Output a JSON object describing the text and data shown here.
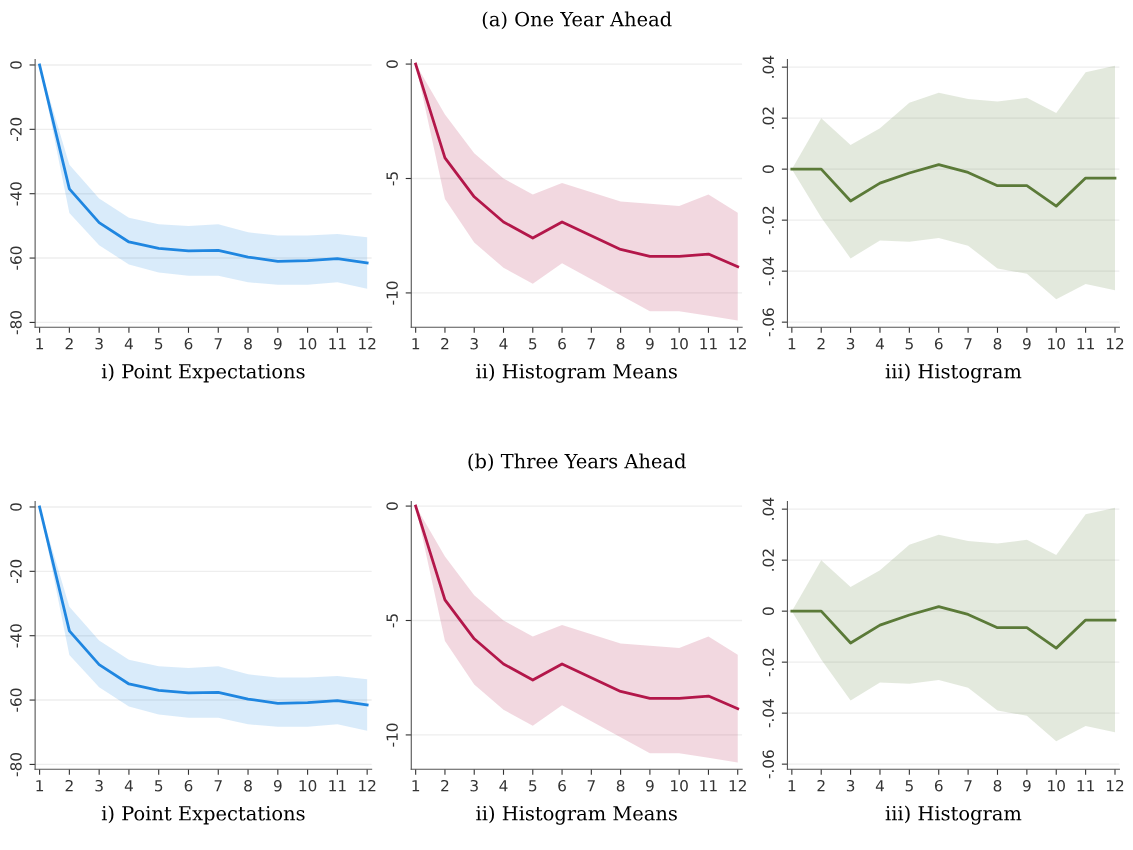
{
  "chart_data": [
    {
      "type": "line",
      "xlabel": "i) Point Expectations",
      "x": [
        1,
        2,
        3,
        4,
        5,
        6,
        7,
        8,
        9,
        10,
        11,
        12
      ],
      "xlim": [
        0.85,
        12.15
      ],
      "xticks": [
        1,
        2,
        3,
        4,
        5,
        6,
        7,
        8,
        9,
        10,
        11,
        12
      ],
      "ylim": [
        -81.5,
        1.7
      ],
      "yticks": [
        -80,
        -60,
        -40,
        -20,
        0
      ],
      "grid": "y",
      "series": [
        {
          "color": "#1f86e0",
          "values": [
            0,
            -38.5,
            -49,
            -55,
            -57,
            -57.8,
            -57.6,
            -59.7,
            -61,
            -60.8,
            -60.2,
            -61.5
          ],
          "upper": [
            0,
            -31,
            -41.5,
            -47.5,
            -49.5,
            -50,
            -49.5,
            -52,
            -53,
            -53,
            -52.5,
            -53.5
          ],
          "lower": [
            0,
            -46,
            -56,
            -62,
            -64.5,
            -65.5,
            -65.5,
            -67.5,
            -68.3,
            -68.3,
            -67.5,
            -69.5
          ]
        }
      ]
    },
    {
      "type": "line",
      "title": "(a) One Year Ahead",
      "xlabel": "ii) Histogram Means",
      "x": [
        1,
        2,
        3,
        4,
        5,
        6,
        7,
        8,
        9,
        10,
        11,
        12
      ],
      "xlim": [
        0.85,
        12.15
      ],
      "xticks": [
        1,
        2,
        3,
        4,
        5,
        6,
        7,
        8,
        9,
        10,
        11,
        12
      ],
      "ylim": [
        -11.5,
        0.2
      ],
      "yticks": [
        -10,
        -5,
        0
      ],
      "grid": "y",
      "series": [
        {
          "color": "#b3174a",
          "values": [
            0,
            -4.1,
            -5.8,
            -6.9,
            -7.6,
            -6.9,
            -7.5,
            -8.1,
            -8.4,
            -8.4,
            -8.3,
            -8.85
          ],
          "upper": [
            0,
            -2.2,
            -3.9,
            -5.0,
            -5.7,
            -5.2,
            -5.6,
            -6.0,
            -6.1,
            -6.2,
            -5.7,
            -6.5
          ],
          "lower": [
            0,
            -5.9,
            -7.8,
            -8.9,
            -9.6,
            -8.7,
            -9.4,
            -10.1,
            -10.8,
            -10.8,
            -11.0,
            -11.2
          ]
        }
      ]
    },
    {
      "type": "line",
      "xlabel": "iii) Histogram",
      "x": [
        1,
        2,
        3,
        4,
        5,
        6,
        7,
        8,
        9,
        10,
        11,
        12
      ],
      "xlim": [
        0.85,
        12.15
      ],
      "xticks": [
        1,
        2,
        3,
        4,
        5,
        6,
        7,
        8,
        9,
        10,
        11,
        12
      ],
      "ylim": [
        -0.062,
        0.043
      ],
      "yticks": [
        {
          "value": -0.06,
          "label": "-.06"
        },
        {
          "value": -0.04,
          "label": "-.04"
        },
        {
          "value": -0.02,
          "label": "-.02"
        },
        0,
        {
          "value": 0.02,
          "label": ".02"
        },
        {
          "value": 0.04,
          "label": ".04"
        }
      ],
      "grid": "y",
      "series": [
        {
          "color": "#5b7a38",
          "values": [
            0,
            0,
            -0.0125,
            -0.0055,
            -0.0015,
            0.0018,
            -0.0013,
            -0.0065,
            -0.0065,
            -0.0145,
            -0.0035,
            -0.0035
          ],
          "upper": [
            0,
            0.02,
            0.0095,
            0.016,
            0.026,
            0.03,
            0.0275,
            0.0265,
            0.028,
            0.022,
            0.038,
            0.0405
          ],
          "lower": [
            0,
            -0.019,
            -0.035,
            -0.028,
            -0.0285,
            -0.027,
            -0.03,
            -0.039,
            -0.041,
            -0.051,
            -0.045,
            -0.0475
          ]
        }
      ]
    },
    {
      "type": "line",
      "xlabel": "i) Point Expectations",
      "x": [
        1,
        2,
        3,
        4,
        5,
        6,
        7,
        8,
        9,
        10,
        11,
        12
      ],
      "xlim": [
        0.85,
        12.15
      ],
      "xticks": [
        1,
        2,
        3,
        4,
        5,
        6,
        7,
        8,
        9,
        10,
        11,
        12
      ],
      "ylim": [
        -81.5,
        1.7
      ],
      "yticks": [
        -80,
        -60,
        -40,
        -20,
        0
      ],
      "grid": "y",
      "series": [
        {
          "color": "#1f86e0",
          "values": [
            0,
            -38.5,
            -49,
            -55,
            -57,
            -57.8,
            -57.6,
            -59.7,
            -61,
            -60.8,
            -60.2,
            -61.5
          ],
          "upper": [
            0,
            -31,
            -41.5,
            -47.5,
            -49.5,
            -50,
            -49.5,
            -52,
            -53,
            -53,
            -52.5,
            -53.5
          ],
          "lower": [
            0,
            -46,
            -56,
            -62,
            -64.5,
            -65.5,
            -65.5,
            -67.5,
            -68.3,
            -68.3,
            -67.5,
            -69.5
          ]
        }
      ]
    },
    {
      "type": "line",
      "title": "(b) Three Years Ahead",
      "xlabel": "ii) Histogram Means",
      "x": [
        1,
        2,
        3,
        4,
        5,
        6,
        7,
        8,
        9,
        10,
        11,
        12
      ],
      "xlim": [
        0.85,
        12.15
      ],
      "xticks": [
        1,
        2,
        3,
        4,
        5,
        6,
        7,
        8,
        9,
        10,
        11,
        12
      ],
      "ylim": [
        -11.5,
        0.2
      ],
      "yticks": [
        -10,
        -5,
        0
      ],
      "grid": "y",
      "series": [
        {
          "color": "#b3174a",
          "values": [
            0,
            -4.1,
            -5.8,
            -6.9,
            -7.6,
            -6.9,
            -7.5,
            -8.1,
            -8.4,
            -8.4,
            -8.3,
            -8.85
          ],
          "upper": [
            0,
            -2.2,
            -3.9,
            -5.0,
            -5.7,
            -5.2,
            -5.6,
            -6.0,
            -6.1,
            -6.2,
            -5.7,
            -6.5
          ],
          "lower": [
            0,
            -5.9,
            -7.8,
            -8.9,
            -9.6,
            -8.7,
            -9.4,
            -10.1,
            -10.8,
            -10.8,
            -11.0,
            -11.2
          ]
        }
      ]
    },
    {
      "type": "line",
      "xlabel": "iii) Histogram",
      "x": [
        1,
        2,
        3,
        4,
        5,
        6,
        7,
        8,
        9,
        10,
        11,
        12
      ],
      "xlim": [
        0.85,
        12.15
      ],
      "xticks": [
        1,
        2,
        3,
        4,
        5,
        6,
        7,
        8,
        9,
        10,
        11,
        12
      ],
      "ylim": [
        -0.062,
        0.043
      ],
      "yticks": [
        {
          "value": -0.06,
          "label": "-.06"
        },
        {
          "value": -0.04,
          "label": "-.04"
        },
        {
          "value": -0.02,
          "label": "-.02"
        },
        0,
        {
          "value": 0.02,
          "label": ".02"
        },
        {
          "value": 0.04,
          "label": ".04"
        }
      ],
      "grid": "y",
      "series": [
        {
          "color": "#5b7a38",
          "values": [
            0,
            0,
            -0.0125,
            -0.0055,
            -0.0015,
            0.0018,
            -0.0013,
            -0.0065,
            -0.0065,
            -0.0145,
            -0.0035,
            -0.0035
          ],
          "upper": [
            0,
            0.02,
            0.0095,
            0.016,
            0.026,
            0.03,
            0.0275,
            0.0265,
            0.028,
            0.022,
            0.038,
            0.0405
          ],
          "lower": [
            0,
            -0.019,
            -0.035,
            -0.028,
            -0.0285,
            -0.027,
            -0.03,
            -0.039,
            -0.041,
            -0.051,
            -0.045,
            -0.0475
          ]
        }
      ]
    }
  ]
}
